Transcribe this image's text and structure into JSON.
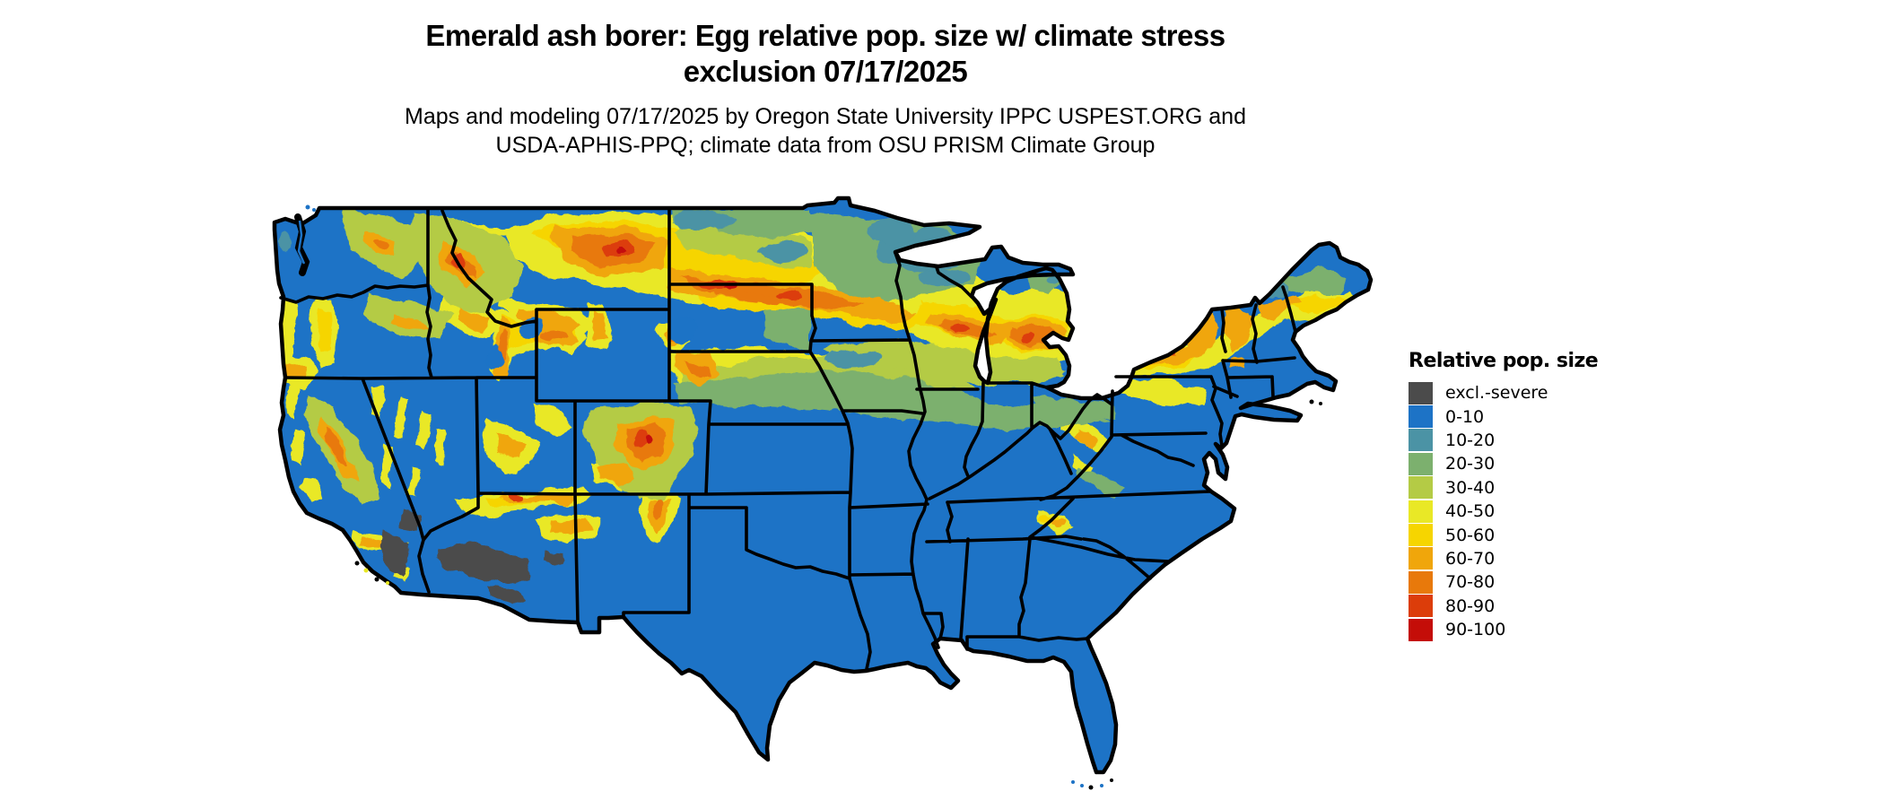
{
  "title": {
    "line1": "Emerald ash borer: Egg relative pop. size w/ climate stress",
    "line2": "exclusion 07/17/2025"
  },
  "subtitle": {
    "line1": "Maps and modeling 07/17/2025 by Oregon State University IPPC USPEST.ORG and",
    "line2": "USDA-APHIS-PPQ; climate data from OSU PRISM Climate Group"
  },
  "legend": {
    "title": "Relative pop. size",
    "entries": [
      {
        "label": "excl.-severe",
        "color": "#4b4b4b"
      },
      {
        "label": "0-10",
        "color": "#1d73c6"
      },
      {
        "label": "10-20",
        "color": "#4b93a5"
      },
      {
        "label": "20-30",
        "color": "#7cb06e"
      },
      {
        "label": "30-40",
        "color": "#b4cb45"
      },
      {
        "label": "40-50",
        "color": "#e9e826"
      },
      {
        "label": "50-60",
        "color": "#f6d500"
      },
      {
        "label": "60-70",
        "color": "#f0a60b"
      },
      {
        "label": "70-80",
        "color": "#e8790b"
      },
      {
        "label": "80-90",
        "color": "#dc3d0a"
      },
      {
        "label": "90-100",
        "color": "#c40d08"
      }
    ]
  },
  "map": {
    "background": "#ffffff",
    "outline_color": "#000000"
  },
  "chart_data": {
    "type": "heatmap",
    "title": "Emerald ash borer: Egg relative pop. size w/ climate stress exclusion 07/17/2025",
    "legend_title": "Relative pop. size",
    "categories": [
      "excl.-severe",
      "0-10",
      "10-20",
      "20-30",
      "30-40",
      "40-50",
      "50-60",
      "60-70",
      "70-80",
      "80-90",
      "90-100"
    ],
    "colors": [
      "#4b4b4b",
      "#1d73c6",
      "#4b93a5",
      "#7cb06e",
      "#b4cb45",
      "#e9e826",
      "#f6d500",
      "#f0a60b",
      "#e8790b",
      "#dc3d0a",
      "#c40d08"
    ],
    "legend_position": "right"
  }
}
